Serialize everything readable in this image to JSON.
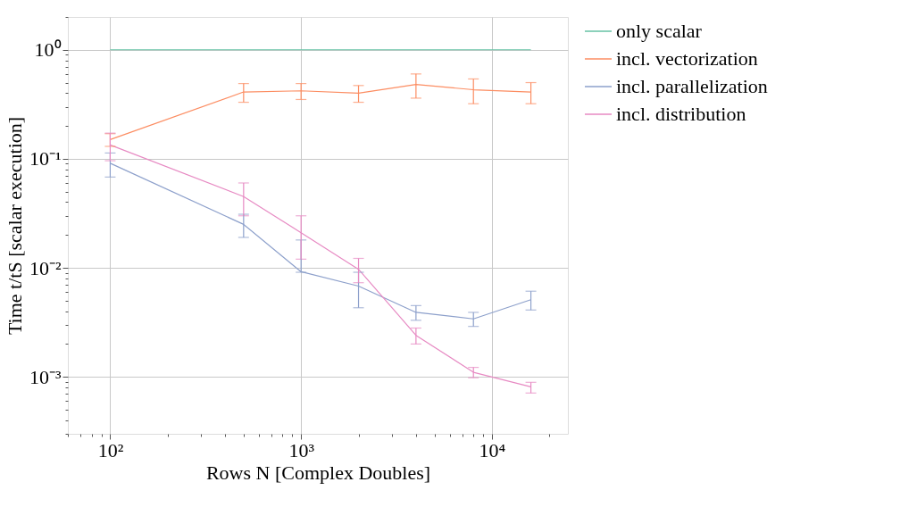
{
  "chart_data": {
    "type": "line",
    "xlabel": "Rows N [Complex Doubles]",
    "ylabel": "Time t/tS [scalar execution]",
    "log": "xy",
    "grid": true,
    "legend": "top right",
    "marker": "none",
    "line_style": "solid",
    "x": [
      100,
      500,
      1000,
      2000,
      4000,
      8000,
      16000
    ],
    "xlim": [
      60,
      25000
    ],
    "ylim": [
      0.0003,
      2
    ],
    "xticks": [
      {
        "value": 60,
        "label": null
      },
      {
        "value": 70,
        "label": null
      },
      {
        "value": 80,
        "label": null
      },
      {
        "value": 90,
        "label": null
      },
      {
        "value": 100,
        "label": "10²"
      },
      {
        "value": 200,
        "label": null
      },
      {
        "value": 300,
        "label": null
      },
      {
        "value": 400,
        "label": null
      },
      {
        "value": 500,
        "label": null
      },
      {
        "value": 600,
        "label": null
      },
      {
        "value": 700,
        "label": null
      },
      {
        "value": 800,
        "label": null
      },
      {
        "value": 900,
        "label": null
      },
      {
        "value": 1000,
        "label": "10³"
      },
      {
        "value": 2000,
        "label": null
      },
      {
        "value": 3000,
        "label": null
      },
      {
        "value": 4000,
        "label": null
      },
      {
        "value": 5000,
        "label": null
      },
      {
        "value": 6000,
        "label": null
      },
      {
        "value": 7000,
        "label": null
      },
      {
        "value": 8000,
        "label": null
      },
      {
        "value": 9000,
        "label": null
      },
      {
        "value": 10000,
        "label": "10⁴"
      },
      {
        "value": 20000,
        "label": null
      }
    ],
    "yticks": [
      {
        "value": 0.0003,
        "label": null
      },
      {
        "value": 0.0004,
        "label": null
      },
      {
        "value": 0.0005,
        "label": null
      },
      {
        "value": 0.0006,
        "label": null
      },
      {
        "value": 0.0007,
        "label": null
      },
      {
        "value": 0.0008,
        "label": null
      },
      {
        "value": 0.0009,
        "label": null
      },
      {
        "value": 0.001,
        "label": "10⁻³"
      },
      {
        "value": 0.002,
        "label": null
      },
      {
        "value": 0.003,
        "label": null
      },
      {
        "value": 0.004,
        "label": null
      },
      {
        "value": 0.005,
        "label": null
      },
      {
        "value": 0.006,
        "label": null
      },
      {
        "value": 0.007,
        "label": null
      },
      {
        "value": 0.008,
        "label": null
      },
      {
        "value": 0.009,
        "label": null
      },
      {
        "value": 0.01,
        "label": "10⁻²"
      },
      {
        "value": 0.02,
        "label": null
      },
      {
        "value": 0.03,
        "label": null
      },
      {
        "value": 0.04,
        "label": null
      },
      {
        "value": 0.05,
        "label": null
      },
      {
        "value": 0.06,
        "label": null
      },
      {
        "value": 0.07,
        "label": null
      },
      {
        "value": 0.08,
        "label": null
      },
      {
        "value": 0.09,
        "label": null
      },
      {
        "value": 0.1,
        "label": "10⁻¹"
      },
      {
        "value": 0.2,
        "label": null
      },
      {
        "value": 0.3,
        "label": null
      },
      {
        "value": 0.4,
        "label": null
      },
      {
        "value": 0.5,
        "label": null
      },
      {
        "value": 0.6,
        "label": null
      },
      {
        "value": 0.7,
        "label": null
      },
      {
        "value": 0.8,
        "label": null
      },
      {
        "value": 0.9,
        "label": null
      },
      {
        "value": 1,
        "label": "10⁰"
      },
      {
        "value": 2,
        "label": null
      }
    ],
    "series": [
      {
        "name": "only scalar",
        "color": "#66c2a5",
        "values": [
          1,
          1,
          1,
          1,
          1,
          1,
          1
        ]
      },
      {
        "name": "incl. vectorization",
        "color": "#fc8d62",
        "values": [
          0.15,
          0.41,
          0.42,
          0.4,
          0.48,
          0.43,
          0.41
        ],
        "errors": [
          [
            0.13,
            0.17
          ],
          [
            0.33,
            0.49
          ],
          [
            0.35,
            0.49
          ],
          [
            0.33,
            0.47
          ],
          [
            0.36,
            0.6
          ],
          [
            0.32,
            0.54
          ],
          [
            0.32,
            0.5
          ]
        ]
      },
      {
        "name": "incl. parallelization",
        "color": "#8da0cb",
        "values": [
          0.091,
          0.025,
          0.0092,
          0.0068,
          0.0039,
          0.0034,
          0.0051
        ],
        "errors": [
          [
            0.068,
            0.113
          ],
          [
            0.019,
            0.031
          ],
          [
            0.0091,
            0.018
          ],
          [
            0.0043,
            0.0091
          ],
          [
            0.0033,
            0.0045
          ],
          [
            0.0029,
            0.0039
          ],
          [
            0.0041,
            0.0061
          ]
        ]
      },
      {
        "name": "incl. distribution",
        "color": "#e78ac3",
        "values": [
          0.134,
          0.045,
          0.021,
          0.0097,
          0.0024,
          0.0011,
          0.00081
        ],
        "errors": [
          [
            0.096,
            0.172
          ],
          [
            0.03,
            0.06
          ],
          [
            0.012,
            0.03
          ],
          [
            0.0073,
            0.0122
          ],
          [
            0.002,
            0.0028
          ],
          [
            0.00098,
            0.00122
          ],
          [
            0.00071,
            0.00089
          ]
        ]
      }
    ]
  }
}
